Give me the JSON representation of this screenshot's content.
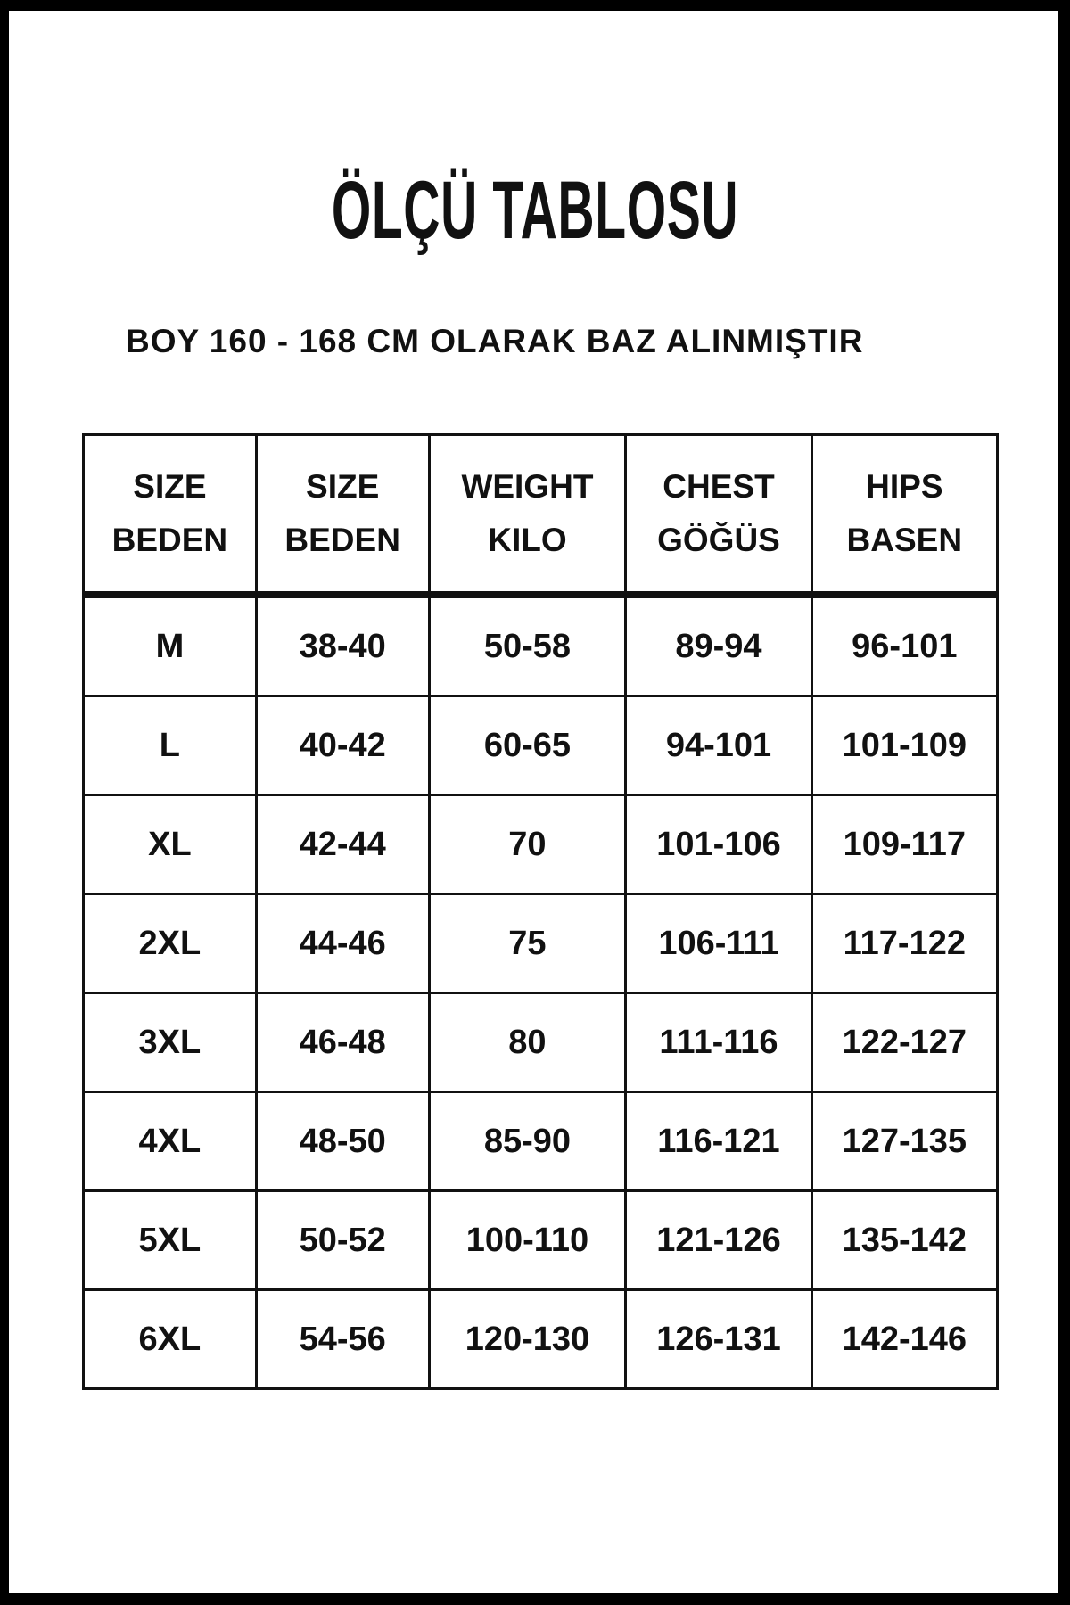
{
  "title": "ÖLÇÜ TABLOSU",
  "subtitle": "BOY 160 - 168 CM OLARAK BAZ ALINMIŞTIR",
  "headers": [
    {
      "line1": "SIZE",
      "line2": "BEDEN"
    },
    {
      "line1": "SIZE",
      "line2": "BEDEN"
    },
    {
      "line1": "WEIGHT",
      "line2": "KILO"
    },
    {
      "line1": "CHEST",
      "line2": "GÖĞÜS"
    },
    {
      "line1": "HIPS",
      "line2": "BASEN"
    }
  ],
  "rows": [
    [
      "M",
      "38-40",
      "50-58",
      "89-94",
      "96-101"
    ],
    [
      "L",
      "40-42",
      "60-65",
      "94-101",
      "101-109"
    ],
    [
      "XL",
      "42-44",
      "70",
      "101-106",
      "109-117"
    ],
    [
      "2XL",
      "44-46",
      "75",
      "106-111",
      "117-122"
    ],
    [
      "3XL",
      "46-48",
      "80",
      "111-116",
      "122-127"
    ],
    [
      "4XL",
      "48-50",
      "85-90",
      "116-121",
      "127-135"
    ],
    [
      "5XL",
      "50-52",
      "100-110",
      "121-126",
      "135-142"
    ],
    [
      "6XL",
      "54-56",
      "120-130",
      "126-131",
      "142-146"
    ]
  ]
}
